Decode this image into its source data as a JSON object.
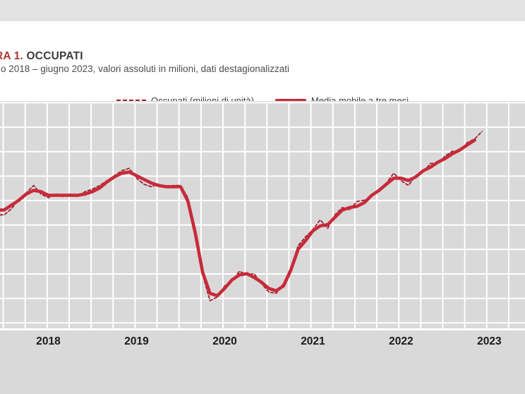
{
  "header": {
    "title_prefix": "RA 1.",
    "title_main": " OCCUPATI",
    "subtitle": "o 2018 – giugno 2023, valori assoluti in milioni, dati destagionalizzati"
  },
  "legend": {
    "items": [
      {
        "label": "Occupati (milioni di unità)",
        "style": "dashed",
        "color": "#9a2133"
      },
      {
        "label": "Media mobile a tre mesi",
        "style": "solid",
        "color": "#c82a3a"
      }
    ]
  },
  "colors": {
    "top_strip_bg": "#e3e3e3",
    "chart_bg": "#d9d9d9",
    "gridline": "#ffffff",
    "title_red": "#ad392c",
    "title_dark": "#3c3c3c",
    "tick_label": "#1a1a1a",
    "occupati_line": "#9a2133",
    "media_mobile_line": "#c82a3a"
  },
  "chart_data": {
    "type": "line",
    "title": "OCCUPATI",
    "subtitle_visible": "o 2018 – giugno 2023, valori assoluti in milioni, dati destagionalizzati",
    "unit": "milioni di unità",
    "grid": true,
    "legend_position": "top",
    "y_axis_labels_visible": false,
    "y_range_est": [
      22.1,
      24.0
    ],
    "y_gridline_interval_est": 0.2,
    "x_tick_labels": [
      "2018",
      "2019",
      "2020",
      "2021",
      "2022",
      "2023"
    ],
    "x": [
      "2018-01",
      "2018-02",
      "2018-03",
      "2018-04",
      "2018-05",
      "2018-06",
      "2018-07",
      "2018-08",
      "2018-09",
      "2018-10",
      "2018-11",
      "2018-12",
      "2019-01",
      "2019-02",
      "2019-03",
      "2019-04",
      "2019-05",
      "2019-06",
      "2019-07",
      "2019-08",
      "2019-09",
      "2019-10",
      "2019-11",
      "2019-12",
      "2020-01",
      "2020-02",
      "2020-03",
      "2020-04",
      "2020-05",
      "2020-06",
      "2020-07",
      "2020-08",
      "2020-09",
      "2020-10",
      "2020-11",
      "2020-12",
      "2021-01",
      "2021-02",
      "2021-03",
      "2021-04",
      "2021-05",
      "2021-06",
      "2021-07",
      "2021-08",
      "2021-09",
      "2021-10",
      "2021-11",
      "2021-12",
      "2022-01",
      "2022-02",
      "2022-03",
      "2022-04",
      "2022-05",
      "2022-06",
      "2022-07",
      "2022-08",
      "2022-09",
      "2022-10",
      "2022-11",
      "2022-12",
      "2023-01",
      "2023-02",
      "2023-03",
      "2023-04",
      "2023-05",
      "2023-06"
    ],
    "series": [
      {
        "name": "Occupati (milioni di unità)",
        "style": "dashed",
        "color": "#9a2133",
        "values": [
          23.08,
          23.13,
          23.21,
          23.26,
          23.32,
          23.25,
          23.22,
          23.25,
          23.23,
          23.25,
          23.23,
          23.27,
          23.29,
          23.32,
          23.36,
          23.4,
          23.44,
          23.46,
          23.38,
          23.33,
          23.31,
          23.33,
          23.3,
          23.32,
          23.32,
          23.22,
          22.9,
          22.59,
          22.38,
          22.41,
          22.5,
          22.54,
          22.62,
          22.59,
          22.6,
          22.52,
          22.45,
          22.44,
          22.52,
          22.65,
          22.83,
          22.9,
          22.96,
          23.04,
          22.97,
          23.08,
          23.14,
          23.12,
          23.19,
          23.2,
          23.23,
          23.29,
          23.34,
          23.42,
          23.36,
          23.32,
          23.4,
          23.43,
          23.5,
          23.5,
          23.56,
          23.6,
          23.6,
          23.67,
          23.7,
          23.76
        ]
      },
      {
        "name": "Media mobile a tre mesi",
        "style": "solid",
        "color": "#c82a3a",
        "values": [
          23.12,
          23.16,
          23.2,
          23.25,
          23.28,
          23.27,
          23.24,
          23.24,
          23.24,
          23.24,
          23.24,
          23.25,
          23.27,
          23.3,
          23.35,
          23.39,
          23.42,
          23.43,
          23.4,
          23.37,
          23.34,
          23.32,
          23.31,
          23.31,
          23.31,
          23.19,
          22.93,
          22.61,
          22.44,
          22.42,
          22.48,
          22.55,
          22.59,
          22.6,
          22.57,
          22.53,
          22.48,
          22.46,
          22.5,
          22.63,
          22.8,
          22.87,
          22.95,
          22.99,
          23.0,
          23.06,
          23.12,
          23.14,
          23.15,
          23.18,
          23.24,
          23.28,
          23.33,
          23.38,
          23.38,
          23.36,
          23.39,
          23.44,
          23.47,
          23.51,
          23.54,
          23.58,
          23.61,
          23.65,
          23.69,
          null
        ]
      }
    ]
  }
}
